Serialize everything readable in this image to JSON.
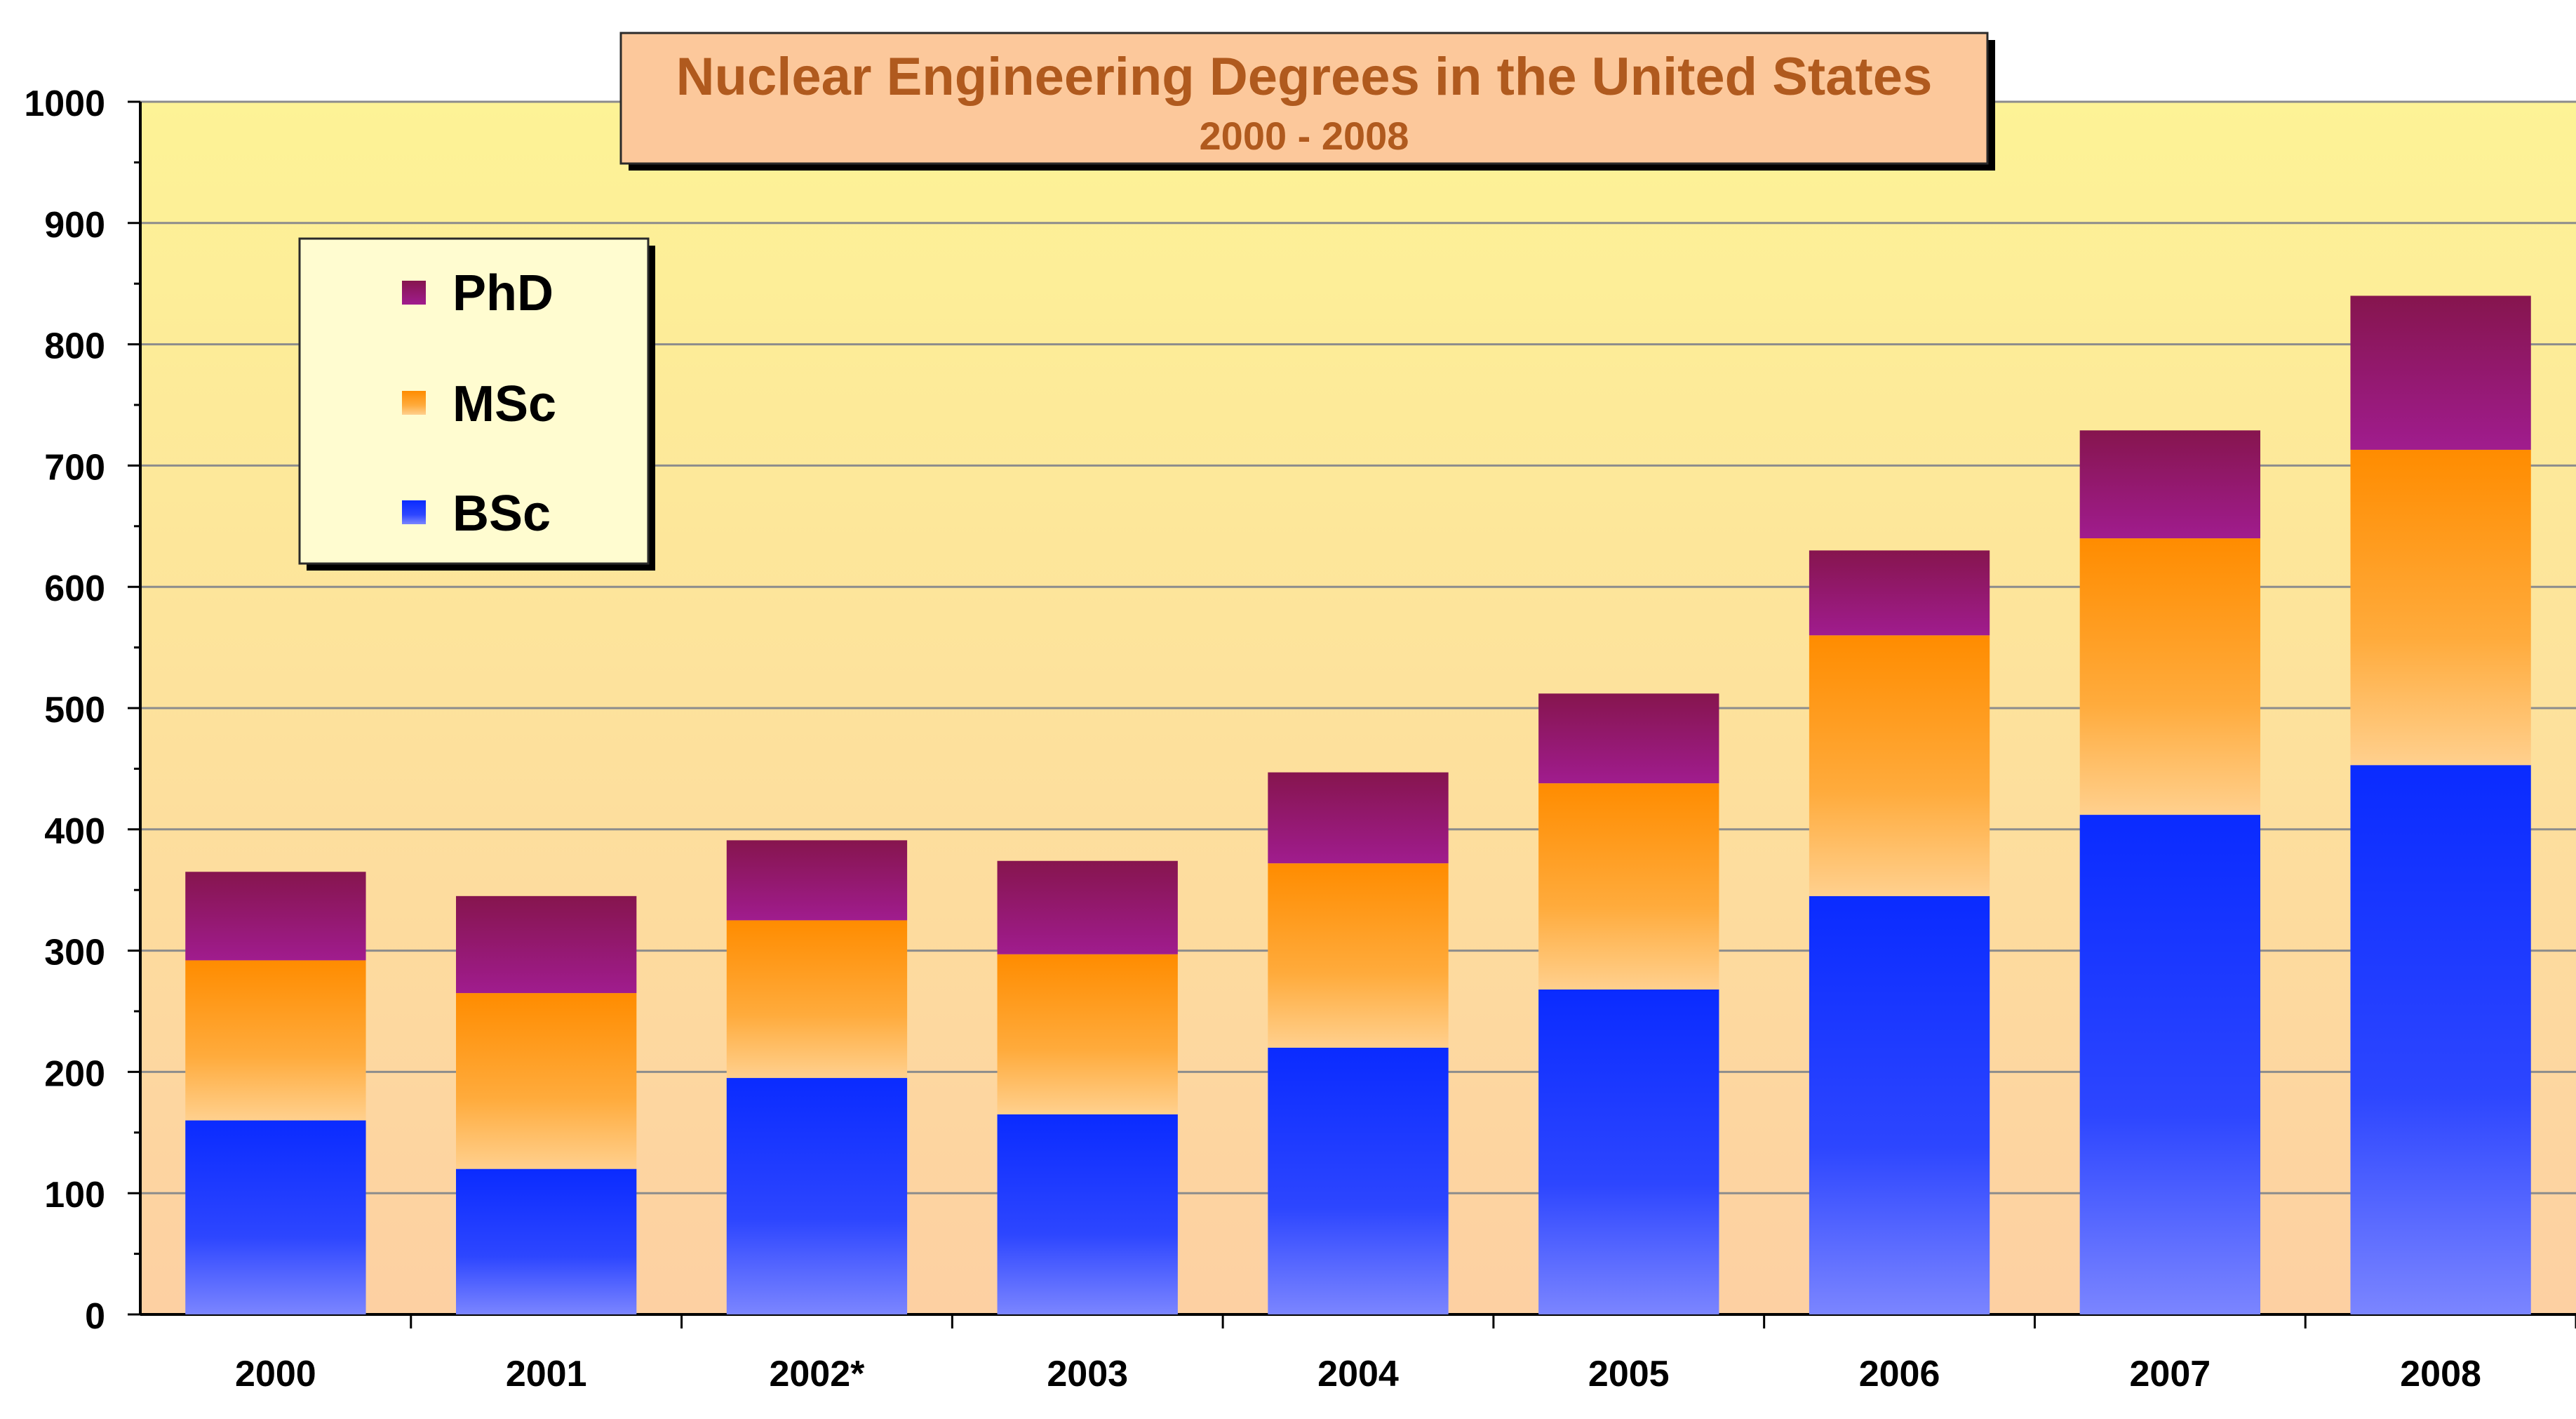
{
  "chart_data": {
    "type": "bar",
    "stacked": true,
    "title": "Nuclear Engineering Degrees in the United States",
    "subtitle": "2000 - 2008",
    "categories": [
      "2000",
      "2001",
      "2002*",
      "2003",
      "2004",
      "2005",
      "2006",
      "2007",
      "2008"
    ],
    "series": [
      {
        "name": "BSc",
        "values": [
          160,
          120,
          195,
          165,
          220,
          268,
          345,
          412,
          453
        ],
        "color": "#1f3cff"
      },
      {
        "name": "MSc",
        "values": [
          132,
          145,
          130,
          132,
          152,
          170,
          215,
          228,
          260
        ],
        "color": "#ff9a00"
      },
      {
        "name": "PhD",
        "values": [
          73,
          80,
          66,
          77,
          75,
          74,
          70,
          89,
          127
        ],
        "color": "#8b1a5e"
      }
    ],
    "legend_order": [
      "PhD",
      "MSc",
      "BSc"
    ],
    "legend_position": "top-left",
    "ylim": [
      0,
      1000
    ],
    "yticks": [
      "0",
      "100",
      "200",
      "300",
      "400",
      "500",
      "600",
      "700",
      "800",
      "900",
      "1000"
    ],
    "xlabel": "",
    "ylabel": "",
    "grid": true,
    "colors": {
      "title_text": "#b05a1e",
      "title_box": "#fcc89b",
      "plot_top": "#fdf396",
      "plot_bottom": "#fdd0a2",
      "legend_bg": "#fffcd0"
    }
  }
}
